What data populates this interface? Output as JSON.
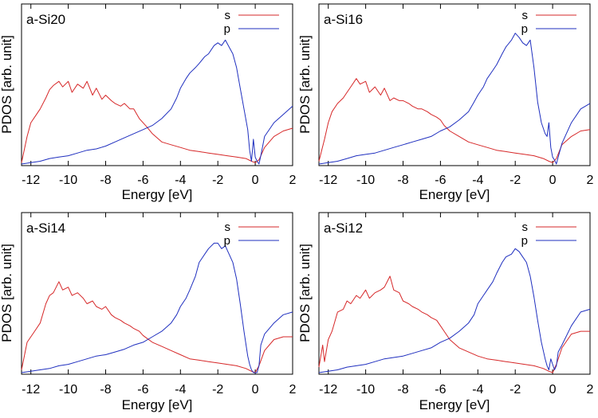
{
  "colors": {
    "s": "#d62728",
    "p": "#1f2fbf",
    "frame": "#000000"
  },
  "chart_data": [
    {
      "type": "line",
      "title": "a-Si20",
      "xlabel": "Energy [eV]",
      "ylabel": "PDOS [arb. unit]",
      "xlim": [
        -12.5,
        2
      ],
      "ylim": [
        0,
        1
      ],
      "xticks": [
        -12,
        -10,
        -8,
        -6,
        -4,
        -2,
        0,
        2
      ],
      "xtick_labels": [
        "-12",
        "-10",
        "-8",
        "-6",
        "-4",
        "-2",
        "0",
        "2"
      ],
      "legend": "top-right",
      "series": [
        {
          "name": "s",
          "x": [
            -12.5,
            -12.2,
            -12.0,
            -11.8,
            -11.5,
            -11.2,
            -11.0,
            -10.8,
            -10.5,
            -10.3,
            -10.0,
            -9.8,
            -9.5,
            -9.2,
            -9.0,
            -8.7,
            -8.5,
            -8.2,
            -8.0,
            -7.7,
            -7.5,
            -7.2,
            -7.0,
            -6.7,
            -6.5,
            -6.2,
            -6.0,
            -5.8,
            -5.5,
            -5.0,
            -4.5,
            -4.0,
            -3.5,
            -3.0,
            -2.5,
            -2.0,
            -1.5,
            -1.0,
            -0.5,
            -0.2,
            0.0,
            0.2,
            0.5,
            1.0,
            1.5,
            2.0
          ],
          "y": [
            0.01,
            0.2,
            0.3,
            0.34,
            0.4,
            0.48,
            0.54,
            0.57,
            0.6,
            0.56,
            0.6,
            0.52,
            0.58,
            0.55,
            0.6,
            0.5,
            0.55,
            0.47,
            0.5,
            0.46,
            0.44,
            0.42,
            0.44,
            0.4,
            0.4,
            0.33,
            0.3,
            0.27,
            0.22,
            0.16,
            0.14,
            0.12,
            0.1,
            0.09,
            0.08,
            0.07,
            0.06,
            0.05,
            0.04,
            0.02,
            0.01,
            0.03,
            0.12,
            0.2,
            0.24,
            0.26
          ]
        },
        {
          "name": "p",
          "x": [
            -12.5,
            -12.0,
            -11.5,
            -11.0,
            -10.5,
            -10.0,
            -9.5,
            -9.0,
            -8.5,
            -8.0,
            -7.5,
            -7.0,
            -6.5,
            -6.0,
            -5.5,
            -5.0,
            -4.5,
            -4.2,
            -4.0,
            -3.7,
            -3.5,
            -3.2,
            -3.0,
            -2.7,
            -2.5,
            -2.2,
            -2.0,
            -1.8,
            -1.6,
            -1.4,
            -1.2,
            -1.0,
            -0.8,
            -0.6,
            -0.4,
            -0.3,
            -0.2,
            -0.1,
            0.0,
            0.1,
            0.2,
            0.3,
            0.5,
            1.0,
            1.5,
            2.0
          ],
          "y": [
            0.0,
            0.01,
            0.02,
            0.04,
            0.05,
            0.06,
            0.08,
            0.1,
            0.11,
            0.13,
            0.16,
            0.19,
            0.22,
            0.25,
            0.28,
            0.33,
            0.4,
            0.48,
            0.55,
            0.62,
            0.66,
            0.7,
            0.73,
            0.78,
            0.8,
            0.86,
            0.88,
            0.86,
            0.9,
            0.85,
            0.8,
            0.7,
            0.55,
            0.4,
            0.25,
            0.1,
            0.02,
            0.18,
            0.05,
            0.02,
            0.0,
            0.06,
            0.2,
            0.3,
            0.36,
            0.42
          ]
        }
      ]
    },
    {
      "type": "line",
      "title": "a-Si16",
      "xlabel": "Energy [eV]",
      "ylabel": "PDOS [arb. unit]",
      "xlim": [
        -12.5,
        2
      ],
      "ylim": [
        0,
        1
      ],
      "xticks": [
        -12,
        -10,
        -8,
        -6,
        -4,
        -2,
        0,
        2
      ],
      "xtick_labels": [
        "-12",
        "-10",
        "-8",
        "-6",
        "-4",
        "-2",
        "0",
        "2"
      ],
      "legend": "top-right",
      "series": [
        {
          "name": "s",
          "x": [
            -12.5,
            -12.2,
            -12.0,
            -11.8,
            -11.5,
            -11.2,
            -11.0,
            -10.8,
            -10.5,
            -10.3,
            -10.0,
            -9.8,
            -9.5,
            -9.2,
            -9.0,
            -8.7,
            -8.5,
            -8.2,
            -8.0,
            -7.7,
            -7.5,
            -7.2,
            -7.0,
            -6.7,
            -6.5,
            -6.2,
            -6.0,
            -5.8,
            -5.5,
            -5.0,
            -4.5,
            -4.0,
            -3.5,
            -3.0,
            -2.5,
            -2.0,
            -1.5,
            -1.0,
            -0.5,
            -0.2,
            0.0,
            0.2,
            0.5,
            1.0,
            1.5,
            2.0
          ],
          "y": [
            0.02,
            0.18,
            0.3,
            0.38,
            0.44,
            0.48,
            0.52,
            0.56,
            0.62,
            0.58,
            0.6,
            0.52,
            0.56,
            0.5,
            0.55,
            0.46,
            0.48,
            0.46,
            0.46,
            0.44,
            0.42,
            0.4,
            0.4,
            0.38,
            0.36,
            0.34,
            0.32,
            0.28,
            0.24,
            0.2,
            0.16,
            0.14,
            0.12,
            0.1,
            0.09,
            0.08,
            0.07,
            0.06,
            0.04,
            0.02,
            0.01,
            0.04,
            0.14,
            0.2,
            0.24,
            0.25
          ]
        },
        {
          "name": "p",
          "x": [
            -12.5,
            -12.0,
            -11.5,
            -11.0,
            -10.5,
            -10.0,
            -9.5,
            -9.0,
            -8.5,
            -8.0,
            -7.5,
            -7.0,
            -6.5,
            -6.0,
            -5.5,
            -5.0,
            -4.5,
            -4.2,
            -4.0,
            -3.7,
            -3.5,
            -3.2,
            -3.0,
            -2.7,
            -2.5,
            -2.2,
            -2.0,
            -1.8,
            -1.6,
            -1.4,
            -1.2,
            -1.0,
            -0.8,
            -0.6,
            -0.4,
            -0.3,
            -0.2,
            -0.1,
            0.0,
            0.1,
            0.2,
            0.3,
            0.5,
            1.0,
            1.5,
            2.0
          ],
          "y": [
            0.0,
            0.01,
            0.02,
            0.04,
            0.06,
            0.07,
            0.08,
            0.1,
            0.12,
            0.14,
            0.16,
            0.18,
            0.2,
            0.24,
            0.27,
            0.32,
            0.38,
            0.45,
            0.5,
            0.56,
            0.62,
            0.68,
            0.72,
            0.8,
            0.85,
            0.9,
            0.95,
            0.92,
            0.88,
            0.86,
            0.9,
            0.7,
            0.45,
            0.3,
            0.22,
            0.2,
            0.3,
            0.12,
            0.05,
            0.03,
            0.0,
            0.05,
            0.15,
            0.3,
            0.4,
            0.44
          ]
        }
      ]
    },
    {
      "type": "line",
      "title": "a-Si14",
      "xlabel": "Energy [eV]",
      "ylabel": "PDOS [arb. unit]",
      "xlim": [
        -12.5,
        2
      ],
      "ylim": [
        0,
        1
      ],
      "xticks": [
        -12,
        -10,
        -8,
        -6,
        -4,
        -2,
        0,
        2
      ],
      "xtick_labels": [
        "-12",
        "-10",
        "-8",
        "-6",
        "-4",
        "-2",
        "0",
        "2"
      ],
      "legend": "top-right",
      "series": [
        {
          "name": "s",
          "x": [
            -12.5,
            -12.2,
            -12.0,
            -11.8,
            -11.5,
            -11.2,
            -11.0,
            -10.8,
            -10.5,
            -10.3,
            -10.0,
            -9.8,
            -9.5,
            -9.2,
            -9.0,
            -8.7,
            -8.5,
            -8.2,
            -8.0,
            -7.7,
            -7.5,
            -7.2,
            -7.0,
            -6.7,
            -6.5,
            -6.2,
            -6.0,
            -5.8,
            -5.5,
            -5.0,
            -4.5,
            -4.0,
            -3.5,
            -3.0,
            -2.5,
            -2.0,
            -1.5,
            -1.0,
            -0.5,
            -0.2,
            0.0,
            0.2,
            0.5,
            1.0,
            1.5,
            2.0
          ],
          "y": [
            0.02,
            0.22,
            0.26,
            0.3,
            0.36,
            0.5,
            0.56,
            0.58,
            0.66,
            0.6,
            0.62,
            0.56,
            0.58,
            0.54,
            0.5,
            0.52,
            0.48,
            0.46,
            0.48,
            0.42,
            0.4,
            0.38,
            0.36,
            0.34,
            0.32,
            0.3,
            0.27,
            0.25,
            0.22,
            0.19,
            0.16,
            0.13,
            0.1,
            0.09,
            0.08,
            0.07,
            0.06,
            0.05,
            0.03,
            0.01,
            0.0,
            0.05,
            0.16,
            0.24,
            0.26,
            0.26
          ]
        },
        {
          "name": "p",
          "x": [
            -12.5,
            -12.0,
            -11.5,
            -11.0,
            -10.5,
            -10.0,
            -9.5,
            -9.0,
            -8.5,
            -8.0,
            -7.5,
            -7.0,
            -6.5,
            -6.0,
            -5.5,
            -5.0,
            -4.5,
            -4.2,
            -4.0,
            -3.7,
            -3.5,
            -3.2,
            -3.0,
            -2.7,
            -2.5,
            -2.2,
            -2.0,
            -1.8,
            -1.6,
            -1.4,
            -1.2,
            -1.0,
            -0.8,
            -0.6,
            -0.4,
            -0.3,
            -0.2,
            -0.1,
            0.0,
            0.1,
            0.2,
            0.3,
            0.5,
            1.0,
            1.5,
            2.0
          ],
          "y": [
            0.0,
            0.01,
            0.02,
            0.03,
            0.05,
            0.06,
            0.08,
            0.1,
            0.12,
            0.13,
            0.15,
            0.17,
            0.2,
            0.22,
            0.26,
            0.3,
            0.36,
            0.42,
            0.48,
            0.54,
            0.6,
            0.7,
            0.8,
            0.86,
            0.9,
            0.94,
            0.94,
            0.9,
            0.92,
            0.86,
            0.8,
            0.68,
            0.5,
            0.3,
            0.12,
            0.06,
            0.02,
            0.0,
            0.0,
            0.0,
            0.05,
            0.2,
            0.28,
            0.36,
            0.42,
            0.44
          ]
        }
      ]
    },
    {
      "type": "line",
      "title": "a-Si12",
      "xlabel": "Energy [eV]",
      "ylabel": "PDOS [arb. unit]",
      "xlim": [
        -12.5,
        2
      ],
      "ylim": [
        0,
        1
      ],
      "xticks": [
        -12,
        -10,
        -8,
        -6,
        -4,
        -2,
        0,
        2
      ],
      "xtick_labels": [
        "-12",
        "-10",
        "-8",
        "-6",
        "-4",
        "-2",
        "0",
        "2"
      ],
      "legend": "top-right",
      "series": [
        {
          "name": "s",
          "x": [
            -12.5,
            -12.3,
            -12.2,
            -12.0,
            -11.8,
            -11.5,
            -11.2,
            -11.0,
            -10.8,
            -10.5,
            -10.3,
            -10.0,
            -9.8,
            -9.5,
            -9.2,
            -9.0,
            -8.7,
            -8.5,
            -8.2,
            -8.0,
            -7.7,
            -7.5,
            -7.2,
            -7.0,
            -6.7,
            -6.5,
            -6.2,
            -6.0,
            -5.8,
            -5.5,
            -5.0,
            -4.5,
            -4.0,
            -3.5,
            -3.0,
            -2.5,
            -2.0,
            -1.5,
            -1.0,
            -0.5,
            -0.2,
            0.0,
            0.2,
            0.5,
            1.0,
            1.5,
            2.0
          ],
          "y": [
            0.04,
            0.2,
            0.08,
            0.24,
            0.3,
            0.44,
            0.46,
            0.52,
            0.5,
            0.56,
            0.54,
            0.6,
            0.54,
            0.58,
            0.6,
            0.62,
            0.7,
            0.6,
            0.58,
            0.52,
            0.5,
            0.48,
            0.46,
            0.44,
            0.42,
            0.4,
            0.38,
            0.34,
            0.3,
            0.24,
            0.18,
            0.15,
            0.12,
            0.1,
            0.09,
            0.08,
            0.07,
            0.06,
            0.05,
            0.03,
            0.01,
            0.0,
            0.06,
            0.18,
            0.28,
            0.3,
            0.3
          ]
        },
        {
          "name": "p",
          "x": [
            -12.5,
            -12.0,
            -11.5,
            -11.0,
            -10.5,
            -10.0,
            -9.5,
            -9.0,
            -8.5,
            -8.0,
            -7.5,
            -7.0,
            -6.5,
            -6.0,
            -5.5,
            -5.0,
            -4.5,
            -4.2,
            -4.0,
            -3.7,
            -3.5,
            -3.2,
            -3.0,
            -2.7,
            -2.5,
            -2.2,
            -2.0,
            -1.8,
            -1.6,
            -1.4,
            -1.2,
            -1.0,
            -0.8,
            -0.6,
            -0.4,
            -0.3,
            -0.2,
            -0.1,
            0.0,
            0.1,
            0.2,
            0.3,
            0.5,
            1.0,
            1.5,
            2.0
          ],
          "y": [
            0.0,
            0.01,
            0.02,
            0.04,
            0.05,
            0.06,
            0.08,
            0.1,
            0.11,
            0.12,
            0.14,
            0.16,
            0.18,
            0.22,
            0.25,
            0.3,
            0.36,
            0.42,
            0.5,
            0.56,
            0.6,
            0.66,
            0.72,
            0.8,
            0.84,
            0.86,
            0.9,
            0.88,
            0.84,
            0.8,
            0.7,
            0.55,
            0.38,
            0.22,
            0.1,
            0.05,
            0.02,
            0.1,
            0.06,
            0.02,
            0.05,
            0.15,
            0.2,
            0.34,
            0.44,
            0.46
          ]
        }
      ]
    }
  ]
}
